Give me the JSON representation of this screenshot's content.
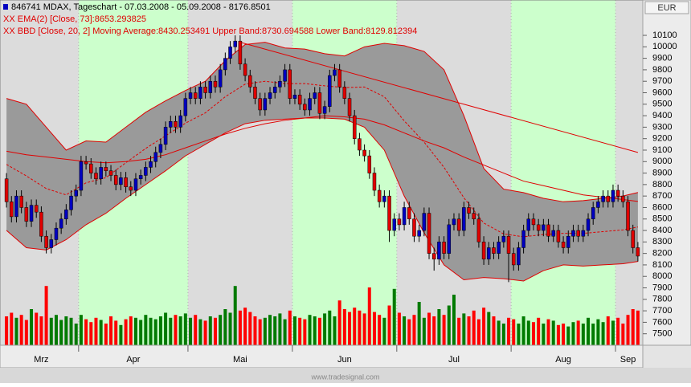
{
  "chart_data": {
    "type": "candlestick",
    "title": "846741  MDAX, Tageschart - 07.03.2008 - 05.09.2008 - 8176.8501",
    "legend_ema": "XX EMA(2) [Close, 73]:8653.293825",
    "legend_bbd": "XX BBD [Close, 20, 2] Moving Average:8430.253491 Upper Band:8730.694588 Lower Band:8129.812394",
    "currency": "EUR",
    "footer": "www.tradesignal.com",
    "up_color": "#0000c0",
    "down_color": "#e00000",
    "volume_up_color": "#007a00",
    "volume_down_color": "#ff0000",
    "band_fill": "#9a9a9a",
    "line_color": "#e00000",
    "shade_color": "#ccffcc",
    "grid": false,
    "ylim": [
      7400,
      10408
    ],
    "yticks": [
      7500,
      7600,
      7700,
      7800,
      7900,
      8000,
      8100,
      8200,
      8300,
      8400,
      8500,
      8600,
      8700,
      8800,
      8900,
      9000,
      9100,
      9200,
      9300,
      9400,
      9500,
      9600,
      9700,
      9800,
      9900,
      10000,
      10100
    ],
    "volume_lim": [
      0,
      100
    ],
    "months": [
      {
        "label": "Mrz",
        "start": 0,
        "end": 15,
        "shaded": false
      },
      {
        "label": "Apr",
        "start": 15,
        "end": 37,
        "shaded": true
      },
      {
        "label": "Mai",
        "start": 37,
        "end": 58,
        "shaded": false
      },
      {
        "label": "Jun",
        "start": 58,
        "end": 79,
        "shaded": true
      },
      {
        "label": "Jul",
        "start": 79,
        "end": 102,
        "shaded": false
      },
      {
        "label": "Aug",
        "start": 102,
        "end": 123,
        "shaded": true
      },
      {
        "label": "Sep",
        "start": 123,
        "end": 128,
        "shaded": false
      }
    ],
    "open": [
      8850,
      8650,
      8520,
      8700,
      8600,
      8480,
      8620,
      8560,
      8350,
      8250,
      8320,
      8420,
      8500,
      8580,
      8700,
      8750,
      9000,
      8980,
      8900,
      8850,
      8950,
      8920,
      8880,
      8800,
      8860,
      8780,
      8750,
      8850,
      8880,
      8950,
      9000,
      9080,
      9150,
      9300,
      9350,
      9300,
      9400,
      9550,
      9600,
      9550,
      9650,
      9600,
      9700,
      9650,
      9800,
      9900,
      10000,
      10050,
      9850,
      9750,
      9650,
      9550,
      9450,
      9550,
      9600,
      9650,
      9700,
      9800,
      9550,
      9580,
      9500,
      9450,
      9550,
      9600,
      9420,
      9480,
      9750,
      9800,
      9650,
      9550,
      9400,
      9200,
      9100,
      9050,
      8900,
      8750,
      8650,
      8700,
      8400,
      8500,
      8450,
      8600,
      8500,
      8350,
      8400,
      8550,
      8200,
      8150,
      8300,
      8200,
      8450,
      8500,
      8400,
      8600,
      8550,
      8500,
      8300,
      8150,
      8250,
      8200,
      8300,
      8350,
      8200,
      8100,
      8250,
      8400,
      8500,
      8450,
      8400,
      8450,
      8350,
      8400,
      8300,
      8250,
      8350,
      8400,
      8350,
      8400,
      8500,
      8600,
      8650,
      8700,
      8650,
      8750,
      8700,
      8650,
      8400,
      8250
    ],
    "high": [
      8900,
      8700,
      8750,
      8750,
      8650,
      8670,
      8670,
      8610,
      8400,
      8370,
      8470,
      8550,
      8630,
      8750,
      8800,
      9050,
      9050,
      9030,
      8950,
      9000,
      9000,
      8970,
      8930,
      8910,
      8910,
      8830,
      8900,
      8930,
      9000,
      9050,
      9130,
      9200,
      9350,
      9400,
      9400,
      9450,
      9600,
      9650,
      9650,
      9700,
      9700,
      9750,
      9750,
      9850,
      9950,
      10050,
      10100,
      10100,
      9900,
      9800,
      9700,
      9600,
      9600,
      9650,
      9700,
      9750,
      9850,
      9850,
      9630,
      9630,
      9550,
      9600,
      9650,
      9650,
      9530,
      9800,
      9850,
      9850,
      9700,
      9600,
      9450,
      9250,
      9150,
      9100,
      8950,
      8800,
      8750,
      8750,
      8550,
      8550,
      8650,
      8650,
      8550,
      8450,
      8600,
      8600,
      8250,
      8350,
      8350,
      8500,
      8550,
      8550,
      8650,
      8650,
      8600,
      8550,
      8350,
      8300,
      8300,
      8350,
      8400,
      8400,
      8250,
      8300,
      8450,
      8550,
      8550,
      8500,
      8500,
      8500,
      8450,
      8450,
      8350,
      8400,
      8450,
      8450,
      8450,
      8550,
      8650,
      8700,
      8750,
      8750,
      8800,
      8800,
      8750,
      8700,
      8450,
      8300
    ],
    "low": [
      8600,
      8470,
      8470,
      8550,
      8430,
      8430,
      8510,
      8300,
      8200,
      8200,
      8270,
      8370,
      8450,
      8530,
      8650,
      8700,
      8930,
      8850,
      8800,
      8800,
      8870,
      8830,
      8750,
      8750,
      8730,
      8700,
      8700,
      8800,
      8830,
      8900,
      8950,
      9030,
      9100,
      9250,
      9250,
      9250,
      9350,
      9500,
      9500,
      9500,
      9550,
      9550,
      9600,
      9600,
      9750,
      9850,
      9950,
      9800,
      9700,
      9600,
      9500,
      9400,
      9400,
      9500,
      9550,
      9600,
      9650,
      9500,
      9500,
      9450,
      9400,
      9400,
      9500,
      9370,
      9370,
      9430,
      9700,
      9600,
      9500,
      9350,
      9150,
      9050,
      9000,
      8850,
      8700,
      8600,
      8600,
      8300,
      8350,
      8400,
      8400,
      8450,
      8300,
      8300,
      8350,
      8150,
      8050,
      8100,
      8150,
      8150,
      8400,
      8350,
      8350,
      8500,
      8450,
      8250,
      8100,
      8100,
      8150,
      8150,
      8250,
      7950,
      8050,
      8050,
      8200,
      8350,
      8400,
      8350,
      8350,
      8300,
      8300,
      8250,
      8200,
      8200,
      8300,
      8300,
      8300,
      8350,
      8450,
      8550,
      8600,
      8600,
      8600,
      8650,
      8600,
      8350,
      8200,
      8130
    ],
    "close": [
      8650,
      8520,
      8700,
      8600,
      8480,
      8620,
      8560,
      8350,
      8250,
      8320,
      8420,
      8500,
      8580,
      8700,
      8750,
      9000,
      8980,
      8900,
      8850,
      8950,
      8920,
      8880,
      8800,
      8860,
      8780,
      8750,
      8850,
      8880,
      8950,
      9000,
      9080,
      9150,
      9300,
      9350,
      9300,
      9400,
      9550,
      9600,
      9550,
      9650,
      9600,
      9700,
      9650,
      9800,
      9900,
      10000,
      10050,
      9850,
      9750,
      9650,
      9550,
      9450,
      9550,
      9600,
      9650,
      9700,
      9800,
      9550,
      9580,
      9500,
      9450,
      9550,
      9600,
      9420,
      9480,
      9750,
      9800,
      9650,
      9550,
      9400,
      9200,
      9100,
      9050,
      8900,
      8750,
      8650,
      8700,
      8400,
      8500,
      8450,
      8600,
      8500,
      8350,
      8400,
      8550,
      8200,
      8150,
      8300,
      8200,
      8450,
      8500,
      8400,
      8600,
      8550,
      8500,
      8300,
      8150,
      8250,
      8200,
      8300,
      8350,
      8200,
      8100,
      8250,
      8400,
      8500,
      8450,
      8400,
      8450,
      8350,
      8400,
      8300,
      8250,
      8350,
      8400,
      8350,
      8400,
      8500,
      8600,
      8650,
      8700,
      8650,
      8750,
      8700,
      8650,
      8400,
      8250,
      8176.85
    ],
    "volume": [
      40,
      45,
      38,
      42,
      35,
      50,
      45,
      40,
      82,
      38,
      42,
      35,
      40,
      38,
      30,
      42,
      36,
      32,
      38,
      35,
      30,
      40,
      34,
      28,
      36,
      40,
      38,
      35,
      42,
      38,
      36,
      40,
      45,
      38,
      42,
      40,
      44,
      38,
      42,
      36,
      34,
      40,
      38,
      42,
      50,
      45,
      82,
      48,
      52,
      46,
      40,
      36,
      38,
      42,
      40,
      44,
      36,
      48,
      40,
      38,
      36,
      42,
      40,
      38,
      44,
      48,
      40,
      62,
      50,
      46,
      52,
      48,
      44,
      80,
      46,
      42,
      38,
      55,
      78,
      45,
      40,
      36,
      42,
      60,
      38,
      45,
      40,
      50,
      42,
      55,
      70,
      38,
      44,
      40,
      48,
      36,
      52,
      46,
      40,
      34,
      30,
      38,
      36,
      30,
      40,
      34,
      32,
      38,
      30,
      36,
      34,
      28,
      30,
      26,
      32,
      34,
      30,
      38,
      30,
      36,
      32,
      40,
      34,
      38,
      30,
      42,
      50,
      48
    ],
    "overlay_x": [
      0,
      4,
      8,
      12,
      16,
      20,
      24,
      28,
      32,
      36,
      40,
      44,
      48,
      52,
      56,
      60,
      64,
      68,
      72,
      76,
      80,
      84,
      88,
      92,
      96,
      100,
      104,
      108,
      112,
      116,
      120,
      124,
      127
    ],
    "upper_band": [
      9550,
      9500,
      9300,
      9100,
      9180,
      9170,
      9300,
      9430,
      9530,
      9620,
      9700,
      9880,
      10020,
      10040,
      9990,
      9980,
      9940,
      9920,
      10000,
      10030,
      10010,
      9960,
      9800,
      9400,
      8940,
      8760,
      8730,
      8680,
      8650,
      8660,
      8680,
      8700,
      8730.694588
    ],
    "lower_band": [
      8400,
      8250,
      8230,
      8320,
      8450,
      8550,
      8680,
      8800,
      8920,
      9050,
      9150,
      9250,
      9330,
      9360,
      9370,
      9380,
      9380,
      9370,
      9300,
      9100,
      8700,
      8380,
      8100,
      7970,
      7990,
      7980,
      7960,
      8050,
      8100,
      8090,
      8100,
      8110,
      8129.812394
    ],
    "moving_average": [
      8975,
      8875,
      8765,
      8710,
      8815,
      8860,
      8990,
      9115,
      9225,
      9335,
      9425,
      9565,
      9675,
      9700,
      9680,
      9680,
      9660,
      9645,
      9650,
      9565,
      9355,
      9170,
      8950,
      8685,
      8465,
      8370,
      8345,
      8365,
      8375,
      8375,
      8390,
      8405,
      8430.253491
    ],
    "ema": [
      9090,
      9060,
      9040,
      9020,
      9000,
      8990,
      9000,
      9020,
      9060,
      9120,
      9180,
      9240,
      9290,
      9330,
      9360,
      9380,
      9400,
      9390,
      9370,
      9320,
      9250,
      9180,
      9120,
      9040,
      8970,
      8900,
      8830,
      8790,
      8750,
      8710,
      8690,
      8670,
      8653.293825
    ],
    "trendline": {
      "x": [
        47,
        127
      ],
      "values": [
        10040,
        9080
      ]
    }
  }
}
